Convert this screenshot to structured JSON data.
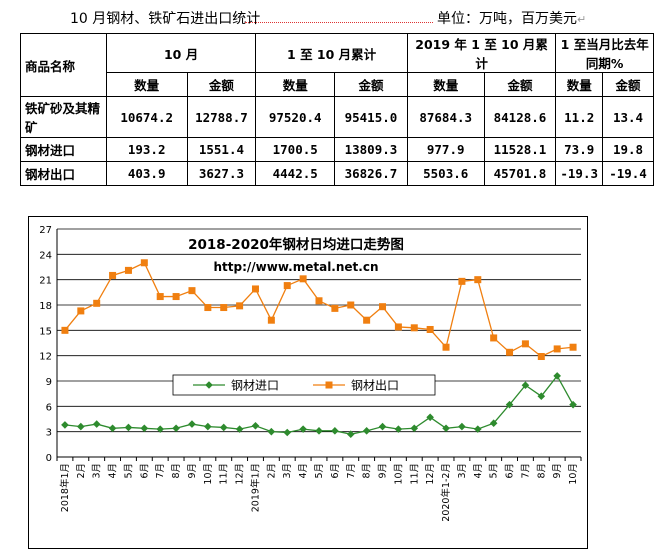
{
  "header": {
    "left_text": "10 月钢材、铁矿石进出口统计",
    "unit_text": "单位：万吨，百万美元"
  },
  "table": {
    "corner_label": "商品名称",
    "groups": [
      "10 月",
      "1 至 10 月累计",
      "2019 年 1 至 10 月累计",
      "1 至当月比去年同期%"
    ],
    "subheaders": [
      "数量",
      "金额",
      "数量",
      "金额",
      "数量",
      "金额",
      "数量",
      "金额"
    ],
    "rows": [
      {
        "name": "铁矿砂及其精矿",
        "values": [
          "10674.2",
          "12788.7",
          "97520.4",
          "95415.0",
          "87684.3",
          "84128.6",
          "11.2",
          "13.4"
        ]
      },
      {
        "name": "钢材进口",
        "values": [
          "193.2",
          "1551.4",
          "1700.5",
          "13809.3",
          "977.9",
          "11528.1",
          "73.9",
          "19.8"
        ]
      },
      {
        "name": "钢材出口",
        "values": [
          "403.9",
          "3627.3",
          "4442.5",
          "36826.7",
          "5503.6",
          "45701.8",
          "-19.3",
          "-19.4"
        ]
      }
    ]
  },
  "chart_data": {
    "type": "line",
    "title": "2018-2020年钢材日均进口走势图",
    "subtitle": "http://www.metal.net.cn",
    "ylim": [
      0,
      27
    ],
    "yticks": [
      0,
      3,
      6,
      9,
      12,
      15,
      18,
      21,
      24,
      27
    ],
    "grid": "horizontal",
    "legend_position": "center-left",
    "categories": [
      "2018年1月",
      "2月",
      "3月",
      "4月",
      "5月",
      "6月",
      "7月",
      "8月",
      "9月",
      "10月",
      "11月",
      "12月",
      "2019年1月",
      "2月",
      "3月",
      "4月",
      "5月",
      "6月",
      "7月",
      "8月",
      "9月",
      "10月",
      "11月",
      "12月",
      "2020年1-2月",
      "3月",
      "4月",
      "5月",
      "6月",
      "7月",
      "8月",
      "9月",
      "10月"
    ],
    "series": [
      {
        "name": "钢材进口",
        "color": "#2e8b2e",
        "marker": "diamond",
        "values": [
          3.8,
          3.6,
          3.9,
          3.4,
          3.5,
          3.4,
          3.3,
          3.4,
          3.9,
          3.6,
          3.5,
          3.3,
          3.7,
          3.0,
          2.9,
          3.3,
          3.1,
          3.1,
          2.7,
          3.1,
          3.6,
          3.3,
          3.4,
          4.7,
          3.4,
          3.6,
          3.3,
          4.0,
          6.2,
          8.5,
          7.2,
          9.6,
          6.2
        ]
      },
      {
        "name": "钢材出口",
        "color": "#f07f10",
        "marker": "square",
        "values": [
          15.0,
          17.3,
          18.2,
          21.5,
          22.1,
          23.0,
          19.0,
          19.0,
          19.7,
          17.7,
          17.7,
          17.9,
          19.9,
          16.2,
          20.3,
          21.1,
          18.5,
          17.6,
          18.0,
          16.2,
          17.8,
          15.4,
          15.3,
          15.1,
          13.0,
          20.8,
          21.0,
          14.1,
          12.4,
          13.4,
          11.9,
          12.8,
          13.0
        ]
      }
    ]
  }
}
